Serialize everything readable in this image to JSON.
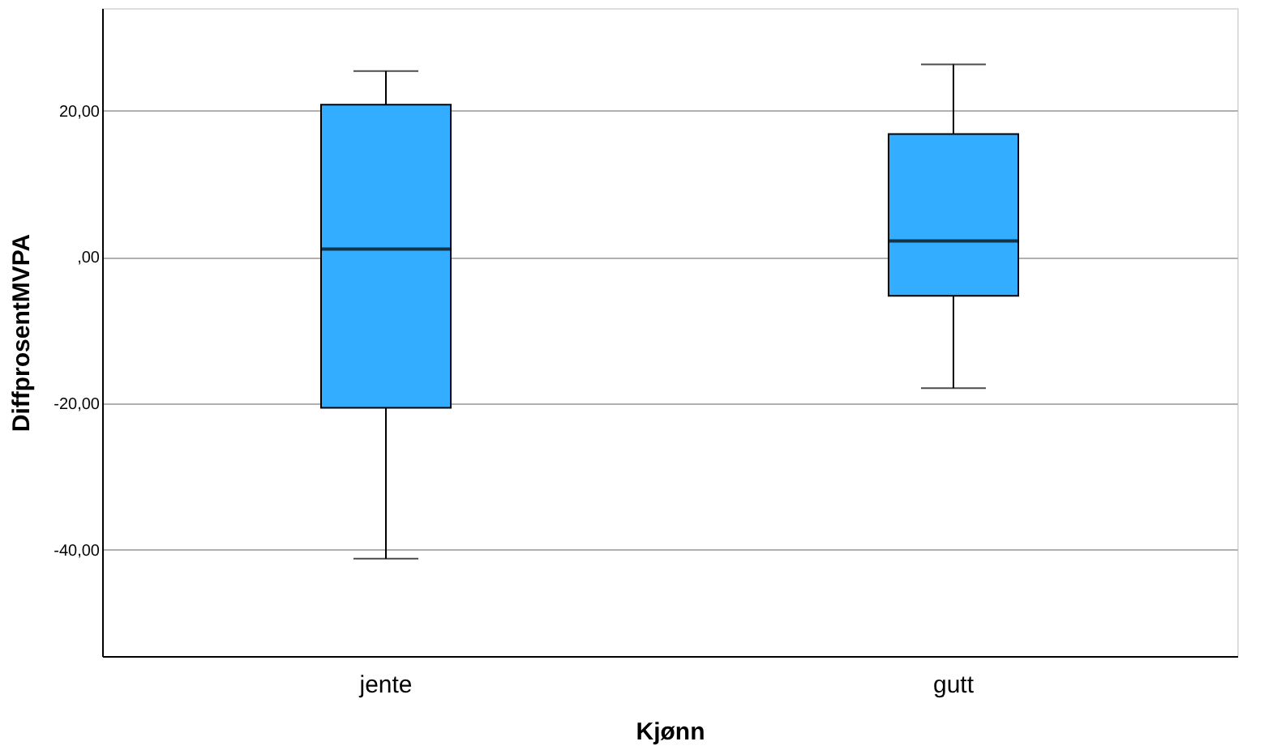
{
  "chart_data": {
    "type": "box",
    "xlabel": "Kjønn",
    "ylabel": "DiffprosentMVPA",
    "categories": [
      "jente",
      "gutt"
    ],
    "color": "#33adff",
    "boxes": [
      {
        "low": -41.2,
        "q1": -20.6,
        "median": 1.1,
        "q3": 20.8,
        "high": 25.4
      },
      {
        "low": -17.9,
        "q1": -5.3,
        "median": 2.2,
        "q3": 16.8,
        "high": 26.3
      }
    ],
    "ylim": [
      -54.5,
      34
    ],
    "yticks": [
      {
        "value": -40,
        "label": "-40,00"
      },
      {
        "value": -20,
        "label": "-20,00"
      },
      {
        "value": 0,
        "label": ",00"
      },
      {
        "value": 20,
        "label": "20,00"
      }
    ],
    "grid": "y"
  }
}
